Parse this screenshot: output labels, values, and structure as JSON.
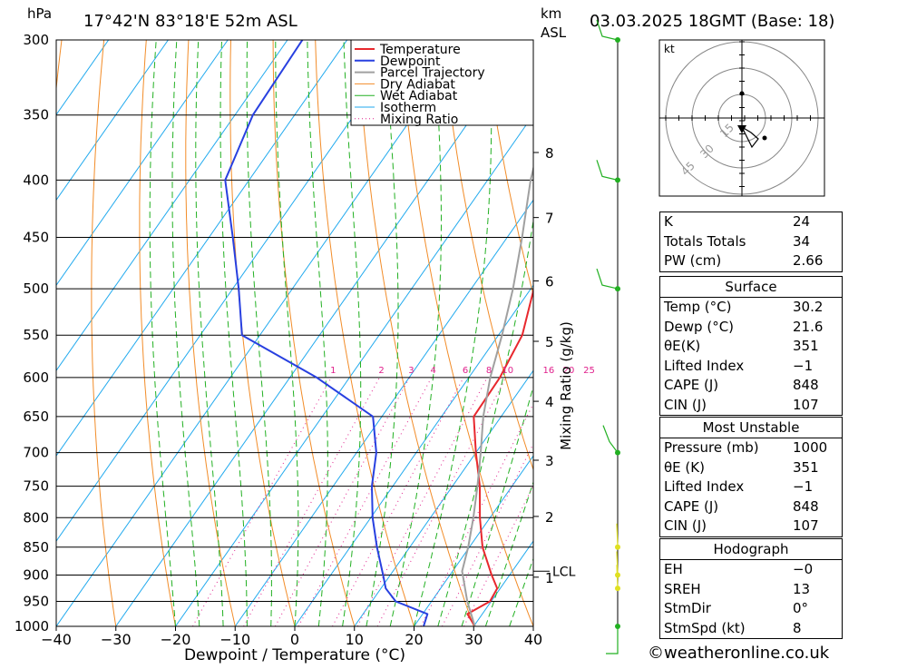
{
  "header": {
    "pressure_unit": "hPa",
    "location": "17°42'N  83°18'E  52m  ASL",
    "height_unit_line1": "km",
    "height_unit_line2": "ASL",
    "datetime": "03.03.2025  18GMT  (Base: 18)"
  },
  "chart_data": {
    "type": "skew-t",
    "xlabel": "Dewpoint / Temperature (°C)",
    "ylabel": "hPa",
    "secondary_label": "Mixing Ratio (g/kg)",
    "x_ticks": [
      -40,
      -30,
      -20,
      -10,
      0,
      10,
      20,
      30,
      40
    ],
    "x_tick_labels": [
      "−40",
      "−30",
      "−20",
      "−10",
      "0",
      "10",
      "20",
      "30",
      "40"
    ],
    "pressure_levels": [
      300,
      350,
      400,
      450,
      500,
      550,
      600,
      650,
      700,
      750,
      800,
      850,
      900,
      950,
      1000
    ],
    "pressure_range": [
      1000,
      300
    ],
    "temperature_range_at_1000": [
      -40,
      40
    ],
    "height_km": [
      {
        "label": "1",
        "p": 904
      },
      {
        "label": "2",
        "p": 798
      },
      {
        "label": "3",
        "p": 711
      },
      {
        "label": "4",
        "p": 630
      },
      {
        "label": "5",
        "p": 557
      },
      {
        "label": "6",
        "p": 492
      },
      {
        "label": "7",
        "p": 432
      },
      {
        "label": "8",
        "p": 378
      }
    ],
    "lcl": {
      "label": "LCL",
      "p": 893
    },
    "mixing_ratio_values": [
      1,
      2,
      3,
      4,
      6,
      8,
      10,
      16,
      20,
      25
    ],
    "mixing_ratio_labels": [
      "1",
      "2",
      "3",
      "4",
      "6",
      "8",
      "10",
      "16",
      "20",
      "25"
    ],
    "legend": [
      "Temperature",
      "Dewpoint",
      "Parcel Trajectory",
      "Dry Adiabat",
      "Wet Adiabat",
      "Isotherm",
      "Mixing Ratio"
    ],
    "series": [
      {
        "name": "Temperature",
        "points": [
          [
            1000,
            30.2
          ],
          [
            975,
            27.5
          ],
          [
            950,
            29.8
          ],
          [
            925,
            29.5
          ],
          [
            900,
            27.0
          ],
          [
            850,
            22.2
          ],
          [
            800,
            18.3
          ],
          [
            750,
            14.6
          ],
          [
            700,
            10.0
          ],
          [
            650,
            5.4
          ],
          [
            600,
            5.2
          ],
          [
            550,
            4.0
          ],
          [
            500,
            0.5
          ],
          [
            450,
            -5.5
          ],
          [
            400,
            -12.0
          ],
          [
            350,
            -19.0
          ],
          [
            300,
            -27.0
          ]
        ]
      },
      {
        "name": "Dewpoint",
        "points": [
          [
            1000,
            21.6
          ],
          [
            975,
            20.8
          ],
          [
            950,
            14.0
          ],
          [
            925,
            10.8
          ],
          [
            900,
            8.8
          ],
          [
            850,
            4.5
          ],
          [
            800,
            0.3
          ],
          [
            750,
            -3.5
          ],
          [
            700,
            -6.7
          ],
          [
            650,
            -11.5
          ],
          [
            600,
            -25.5
          ],
          [
            550,
            -43.0
          ],
          [
            500,
            -49.0
          ],
          [
            450,
            -56.0
          ],
          [
            400,
            -64.0
          ],
          [
            350,
            -67.0
          ],
          [
            300,
            -67.5
          ]
        ]
      },
      {
        "name": "Parcel Trajectory",
        "points": [
          [
            1000,
            30.2
          ],
          [
            950,
            26.0
          ],
          [
            893,
            21.6
          ],
          [
            850,
            19.8
          ],
          [
            800,
            17.2
          ],
          [
            750,
            14.2
          ],
          [
            700,
            10.8
          ],
          [
            650,
            7.0
          ],
          [
            600,
            3.6
          ],
          [
            550,
            0.6
          ],
          [
            500,
            -3.0
          ],
          [
            450,
            -7.5
          ],
          [
            400,
            -12.8
          ],
          [
            365,
            -16.2
          ]
        ]
      }
    ],
    "colors": {
      "temperature": "#e8282e",
      "dewpoint": "#2840e0",
      "parcel": "#a0a0a0",
      "dry_adiabat": "#f28c28",
      "wet_adiabat": "#22b022",
      "isotherm": "#22aaee",
      "mixing_ratio": "#e0208c",
      "wind": "#22b022",
      "wind_low": "#e0e020"
    }
  },
  "wind_profile": [
    {
      "p": 300,
      "level": "upper"
    },
    {
      "p": 400,
      "level": "upper"
    },
    {
      "p": 500,
      "level": "upper"
    },
    {
      "p": 700,
      "level": "mid"
    },
    {
      "p": 850,
      "level": "low"
    },
    {
      "p": 900,
      "level": "low"
    },
    {
      "p": 925,
      "level": "low"
    },
    {
      "p": 1000,
      "level": "surface"
    }
  ],
  "hodograph": {
    "unit": "kt",
    "ring_labels": [
      "15",
      "30",
      "45"
    ]
  },
  "indices": {
    "general": [
      {
        "label": "K",
        "value": "24"
      },
      {
        "label": "Totals Totals",
        "value": "34"
      },
      {
        "label": "PW (cm)",
        "value": "2.66"
      }
    ],
    "surface": {
      "title": "Surface",
      "rows": [
        {
          "label": "Temp (°C)",
          "value": "30.2"
        },
        {
          "label": "Dewp (°C)",
          "value": "21.6"
        },
        {
          "label": "θE(K)",
          "value": "351"
        },
        {
          "label": "Lifted Index",
          "value": "−1"
        },
        {
          "label": "CAPE (J)",
          "value": "848"
        },
        {
          "label": "CIN (J)",
          "value": "107"
        }
      ]
    },
    "most_unstable": {
      "title": "Most Unstable",
      "rows": [
        {
          "label": "Pressure (mb)",
          "value": "1000"
        },
        {
          "label": "θE (K)",
          "value": "351"
        },
        {
          "label": "Lifted Index",
          "value": "−1"
        },
        {
          "label": "CAPE (J)",
          "value": "848"
        },
        {
          "label": "CIN (J)",
          "value": "107"
        }
      ]
    },
    "hodograph": {
      "title": "Hodograph",
      "rows": [
        {
          "label": "EH",
          "value": "−0"
        },
        {
          "label": "SREH",
          "value": "13"
        },
        {
          "label": "StmDir",
          "value": "0°"
        },
        {
          "label": "StmSpd (kt)",
          "value": "8"
        }
      ]
    }
  },
  "footer": {
    "copyright": "©weatheronline.co.uk"
  }
}
